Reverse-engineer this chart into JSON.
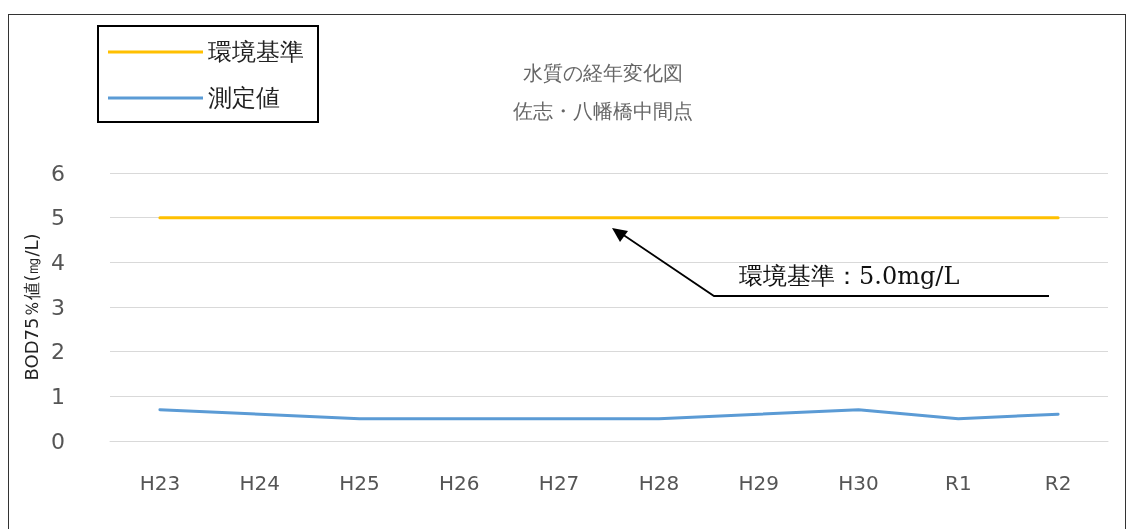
{
  "chart_data": {
    "type": "line",
    "title": "水質の経年変化図",
    "subtitle": "佐志・八幡橋中間点",
    "ylabel": "BOD75％値(㎎/L)",
    "categories": [
      "H23",
      "H24",
      "H25",
      "H26",
      "H27",
      "H28",
      "H29",
      "H30",
      "R1",
      "R2"
    ],
    "series": [
      {
        "name": "環境基準",
        "color": "#ffc000",
        "values": [
          5,
          5,
          5,
          5,
          5,
          5,
          5,
          5,
          5,
          5
        ]
      },
      {
        "name": "測定値",
        "color": "#5b9bd5",
        "values": [
          0.7,
          0.6,
          0.5,
          0.5,
          0.5,
          0.5,
          0.6,
          0.7,
          0.5,
          0.6
        ]
      }
    ],
    "ylim": [
      0,
      6
    ],
    "yticks": [
      0,
      1,
      2,
      3,
      4,
      5,
      6
    ],
    "grid": "y",
    "legend": "top left",
    "marker": "none",
    "line_style": "solid",
    "annotations": [
      "環境基準：5.0mg/L"
    ]
  }
}
